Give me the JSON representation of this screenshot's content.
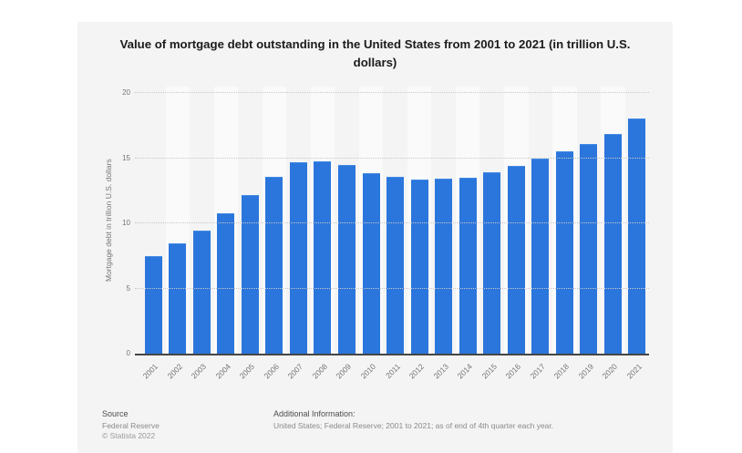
{
  "title": "Value of mortgage debt outstanding in the United States from 2001 to 2021 (in trillion U.S. dollars)",
  "chart_data": {
    "type": "bar",
    "categories": [
      "2001",
      "2002",
      "2003",
      "2004",
      "2005",
      "2006",
      "2007",
      "2008",
      "2009",
      "2010",
      "2011",
      "2012",
      "2013",
      "2014",
      "2015",
      "2016",
      "2017",
      "2018",
      "2019",
      "2020",
      "2021"
    ],
    "values": [
      7.42,
      8.38,
      9.39,
      10.67,
      12.11,
      13.51,
      14.61,
      14.69,
      14.42,
      13.78,
      13.49,
      13.29,
      13.34,
      13.45,
      13.88,
      14.35,
      14.9,
      15.43,
      16.01,
      16.79,
      17.98
    ],
    "title": "Value of mortgage debt outstanding in the United States from 2001 to 2021 (in trillion U.S. dollars)",
    "xlabel": "",
    "ylabel": "Mortgage debt in trillion U.S. dollars",
    "ylim": [
      0,
      20
    ],
    "yticks": [
      0,
      5,
      10,
      15,
      20
    ],
    "grid": "horizontal-dotted",
    "legend": "none",
    "bar_color": "#2b76dc"
  },
  "footer": {
    "source_label": "Source",
    "source_value": "Federal Reserve",
    "copyright": "© Statista 2022",
    "additional_label": "Additional Information:",
    "additional_value": "United States; Federal Reserve; 2001 to 2021; as of end of 4th quarter each year."
  },
  "colors": {
    "bar": "#2b76dc",
    "card_background": "#f4f4f4",
    "stripe": "#fafafa",
    "gridline": "#c8c8c8",
    "axis_line": "#454545",
    "muted_text": "#757575",
    "title_text": "#1b1b1b"
  }
}
